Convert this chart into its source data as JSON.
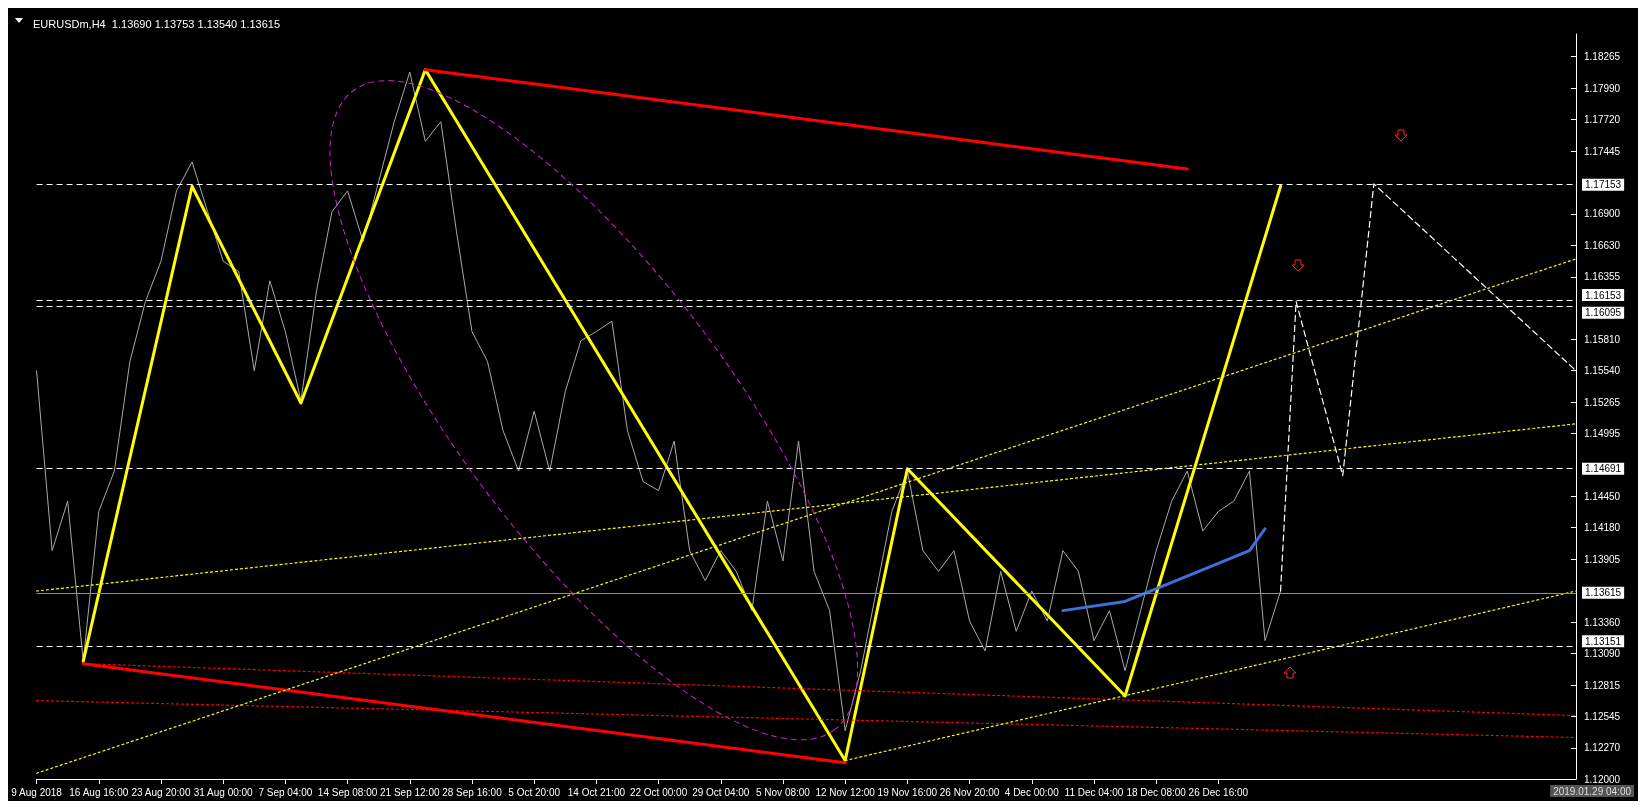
{
  "chart_data": {
    "type": "line",
    "title": "EURUSDm,H4  1.13690 1.13753 1.13540 1.13615",
    "annotations": [
      "2019.01.29 04:00"
    ],
    "categories": [
      "9 Aug 2018",
      null,
      null,
      null,
      "16 Aug 16:00",
      null,
      null,
      null,
      "23 Aug 20:00",
      null,
      null,
      null,
      "31 Aug 00:00",
      null,
      null,
      null,
      "7 Sep 04:00",
      null,
      null,
      null,
      "14 Sep 08:00",
      null,
      null,
      null,
      "21 Sep 12:00",
      null,
      null,
      null,
      "28 Sep 16:00",
      null,
      null,
      null,
      "5 Oct 20:00",
      null,
      null,
      null,
      "14 Oct 21:00",
      null,
      null,
      null,
      "22 Oct 00:00",
      null,
      null,
      null,
      "29 Oct 04:00",
      null,
      null,
      null,
      "5 Nov 08:00",
      null,
      null,
      null,
      "12 Nov 12:00",
      null,
      null,
      null,
      "19 Nov 16:00",
      null,
      null,
      null,
      "26 Nov 20:00",
      null,
      null,
      null,
      "4 Dec 00:00",
      null,
      null,
      null,
      "11 Dec 04:00",
      null,
      null,
      null,
      "18 Dec 08:00",
      null,
      null,
      null,
      "26 Dec 16:00",
      null,
      null,
      null,
      null,
      null,
      null,
      null,
      null,
      null,
      null,
      null,
      null,
      null,
      null,
      null,
      null,
      null,
      null,
      null,
      null,
      null,
      null,
      null
    ],
    "ylim": [
      1.12,
      1.1846
    ],
    "yticks": [
      {
        "value": 1.12,
        "label": "1.12000"
      },
      {
        "value": 1.1227,
        "label": "1.12270"
      },
      1.12545,
      1.12815,
      {
        "value": 1.1309,
        "label": "1.13090"
      },
      {
        "value": 1.1336,
        "label": "1.13360"
      },
      1.13905,
      {
        "value": 1.1418,
        "label": "1.14180"
      },
      {
        "value": 1.1445,
        "label": "1.14450"
      },
      1.14995,
      1.15265,
      {
        "value": 1.1554,
        "label": "1.15540"
      },
      {
        "value": 1.1581,
        "label": "1.15810"
      },
      1.16355,
      {
        "value": 1.1663,
        "label": "1.16630"
      },
      {
        "value": 1.169,
        "label": "1.16900"
      },
      1.17445,
      {
        "value": 1.1772,
        "label": "1.17720"
      },
      {
        "value": 1.1799,
        "label": "1.17990"
      },
      1.18265
    ],
    "grid": false,
    "legend": false,
    "series": [
      {
        "color": "#a8a8a8",
        "line_style": "solid",
        "values": [
          1.1554,
          1.1398,
          1.1441,
          1.1302,
          1.1432,
          1.1467,
          1.1562,
          1.1614,
          1.1649,
          1.171,
          1.1735,
          1.1692,
          1.1649,
          1.164,
          1.1554,
          1.1632,
          1.1588,
          1.1528,
          1.1623,
          1.1692,
          1.171,
          1.1666,
          1.1718,
          1.177,
          1.1813,
          1.1753,
          1.177,
          1.1675,
          1.1588,
          1.1562,
          1.1502,
          1.1467,
          1.1519,
          1.1467,
          1.1536,
          1.158,
          1.1588,
          1.1597,
          1.1502,
          1.1458,
          1.145,
          1.1493,
          1.1398,
          1.1372,
          1.1398,
          1.138,
          1.1346,
          1.1441,
          1.1389,
          1.1493,
          1.138,
          1.1346,
          1.1242,
          1.1294,
          1.1363,
          1.1432,
          1.1467,
          1.1398,
          1.138,
          1.1398,
          1.1337,
          1.1311,
          1.138,
          1.1328,
          1.1363,
          1.1337,
          1.1398,
          1.138,
          1.132,
          1.1346,
          1.1294,
          1.1346,
          1.1398,
          1.1441,
          1.1467,
          1.1415,
          1.1432,
          1.1441,
          1.1467,
          1.132,
          1.1363,
          null,
          null,
          null,
          null,
          null,
          null,
          null,
          null,
          null,
          null,
          null,
          null,
          null,
          null,
          null,
          null,
          null,
          null,
          null
        ]
      },
      {
        "color": "#ffff00",
        "line_style": "solid",
        "values": [
          null,
          null,
          null,
          1.1302,
          null,
          null,
          null,
          null,
          null,
          null,
          1.1714,
          null,
          null,
          null,
          null,
          null,
          null,
          1.1526,
          null,
          null,
          null,
          null,
          null,
          null,
          null,
          1.1815,
          null,
          null,
          null,
          null,
          null,
          null,
          null,
          null,
          null,
          null,
          null,
          null,
          null,
          null,
          null,
          null,
          null,
          null,
          null,
          null,
          null,
          null,
          null,
          null,
          null,
          null,
          1.1216,
          null,
          null,
          null,
          1.1469,
          null,
          null,
          null,
          null,
          null,
          null,
          null,
          null,
          null,
          null,
          null,
          null,
          null,
          1.1272,
          null,
          null,
          null,
          null,
          null,
          null,
          null,
          null,
          null,
          1.1714,
          null,
          null,
          null,
          null,
          null,
          null,
          null,
          null,
          null,
          null,
          null,
          null,
          null,
          null,
          null,
          null,
          null,
          null,
          null
        ]
      },
      {
        "color": "#ff0000",
        "line_style": "solid",
        "values": [
          null,
          null,
          null,
          null,
          null,
          null,
          null,
          null,
          null,
          null,
          null,
          null,
          null,
          null,
          null,
          null,
          null,
          null,
          null,
          null,
          null,
          null,
          null,
          null,
          null,
          1.1815,
          null,
          null,
          null,
          null,
          null,
          null,
          null,
          null,
          null,
          null,
          null,
          null,
          null,
          null,
          null,
          null,
          null,
          null,
          null,
          null,
          null,
          null,
          null,
          null,
          null,
          null,
          null,
          null,
          null,
          null,
          null,
          null,
          null,
          null,
          null,
          null,
          null,
          null,
          null,
          null,
          null,
          null,
          null,
          null,
          null,
          null,
          null,
          null,
          1.1729,
          null,
          null,
          null,
          null,
          null,
          null,
          null,
          null,
          null,
          null,
          null,
          null,
          null,
          null,
          null,
          null,
          null,
          null,
          null,
          null,
          null,
          null,
          null,
          null,
          null
        ]
      },
      {
        "color": "#ff0000",
        "line_style": "solid",
        "values": [
          null,
          null,
          null,
          1.13,
          null,
          null,
          null,
          null,
          null,
          null,
          null,
          null,
          null,
          null,
          null,
          null,
          null,
          null,
          null,
          null,
          null,
          null,
          null,
          null,
          null,
          null,
          null,
          null,
          null,
          null,
          null,
          null,
          null,
          null,
          null,
          null,
          null,
          null,
          null,
          null,
          null,
          null,
          null,
          null,
          null,
          null,
          null,
          null,
          null,
          null,
          null,
          null,
          1.1214,
          null,
          null,
          null,
          null,
          null,
          null,
          null,
          null,
          null,
          null,
          null,
          null,
          null,
          null,
          null,
          null,
          null,
          null,
          null,
          null,
          null,
          null,
          null,
          null,
          null,
          null,
          null,
          null,
          null,
          null,
          null,
          null,
          null,
          null,
          null,
          null,
          null,
          null,
          null,
          null,
          null,
          null,
          null,
          null,
          null,
          null,
          null
        ]
      },
      {
        "color": "#ff0000",
        "line_style": "dotted",
        "values": [
          null,
          null,
          null,
          1.13,
          null,
          null,
          null,
          null,
          null,
          null,
          null,
          null,
          null,
          null,
          null,
          null,
          null,
          null,
          null,
          null,
          null,
          null,
          null,
          null,
          null,
          null,
          null,
          null,
          null,
          null,
          null,
          null,
          null,
          null,
          null,
          null,
          null,
          null,
          null,
          null,
          null,
          null,
          null,
          null,
          null,
          null,
          null,
          null,
          null,
          null,
          null,
          null,
          null,
          null,
          null,
          null,
          null,
          null,
          null,
          null,
          null,
          null,
          null,
          null,
          null,
          null,
          null,
          null,
          null,
          null,
          null,
          null,
          null,
          null,
          null,
          null,
          null,
          null,
          null,
          null,
          null,
          null,
          null,
          null,
          null,
          null,
          null,
          null,
          null,
          null,
          null,
          null,
          null,
          null,
          null,
          null,
          null,
          null,
          null,
          1.1255
        ]
      },
      {
        "color": "#ff0000",
        "line_style": "dotted",
        "values": [
          1.1268,
          null,
          null,
          null,
          null,
          null,
          null,
          null,
          null,
          null,
          null,
          null,
          null,
          null,
          null,
          null,
          null,
          null,
          null,
          null,
          null,
          null,
          null,
          null,
          null,
          null,
          null,
          null,
          null,
          null,
          null,
          null,
          null,
          null,
          null,
          null,
          null,
          null,
          null,
          null,
          null,
          null,
          null,
          null,
          null,
          null,
          null,
          null,
          null,
          null,
          null,
          null,
          null,
          null,
          null,
          null,
          null,
          null,
          null,
          null,
          null,
          null,
          null,
          null,
          null,
          null,
          null,
          null,
          null,
          null,
          null,
          null,
          null,
          null,
          null,
          null,
          null,
          null,
          null,
          null,
          null,
          null,
          null,
          null,
          null,
          null,
          null,
          null,
          null,
          null,
          null,
          null,
          null,
          null,
          null,
          null,
          null,
          null,
          null,
          1.1236
        ]
      },
      {
        "color": "#ffff00",
        "line_style": "dotted",
        "values": [
          1.1363,
          null,
          null,
          null,
          null,
          null,
          null,
          null,
          null,
          null,
          null,
          null,
          null,
          null,
          null,
          null,
          null,
          null,
          null,
          null,
          null,
          null,
          null,
          null,
          null,
          null,
          null,
          null,
          null,
          null,
          null,
          null,
          null,
          null,
          null,
          null,
          null,
          null,
          null,
          null,
          null,
          null,
          null,
          null,
          null,
          null,
          null,
          null,
          null,
          null,
          null,
          null,
          null,
          null,
          null,
          null,
          null,
          null,
          null,
          null,
          null,
          null,
          null,
          null,
          null,
          null,
          null,
          null,
          null,
          null,
          null,
          null,
          null,
          null,
          null,
          null,
          null,
          null,
          null,
          null,
          null,
          null,
          null,
          null,
          null,
          null,
          null,
          null,
          null,
          null,
          null,
          null,
          null,
          null,
          null,
          null,
          null,
          null,
          null,
          1.1508
        ]
      },
      {
        "color": "#ffff00",
        "line_style": "dotted",
        "values": [
          1.1205,
          null,
          null,
          null,
          null,
          null,
          null,
          null,
          null,
          null,
          null,
          null,
          null,
          null,
          null,
          null,
          null,
          null,
          null,
          null,
          null,
          null,
          null,
          null,
          null,
          null,
          null,
          null,
          null,
          null,
          null,
          null,
          null,
          null,
          null,
          null,
          null,
          null,
          null,
          null,
          null,
          null,
          null,
          null,
          null,
          null,
          null,
          null,
          null,
          null,
          null,
          null,
          null,
          null,
          null,
          null,
          null,
          null,
          null,
          null,
          null,
          null,
          null,
          null,
          null,
          null,
          null,
          null,
          null,
          null,
          null,
          null,
          null,
          null,
          null,
          null,
          null,
          null,
          null,
          null,
          null,
          null,
          null,
          null,
          null,
          null,
          null,
          null,
          null,
          null,
          null,
          null,
          null,
          null,
          null,
          null,
          null,
          null,
          null,
          1.1651
        ]
      },
      {
        "color": "#ffff00",
        "line_style": "dotted",
        "values": [
          null,
          null,
          null,
          null,
          null,
          null,
          null,
          null,
          null,
          null,
          null,
          null,
          null,
          null,
          null,
          null,
          null,
          null,
          null,
          null,
          null,
          null,
          null,
          null,
          null,
          null,
          null,
          null,
          null,
          null,
          null,
          null,
          null,
          null,
          null,
          null,
          null,
          null,
          null,
          null,
          null,
          null,
          null,
          null,
          null,
          null,
          null,
          null,
          null,
          null,
          null,
          null,
          1.1216,
          null,
          null,
          null,
          null,
          null,
          null,
          null,
          null,
          null,
          null,
          null,
          null,
          null,
          null,
          null,
          null,
          null,
          null,
          null,
          null,
          null,
          null,
          null,
          null,
          null,
          null,
          null,
          null,
          null,
          null,
          null,
          null,
          null,
          null,
          null,
          null,
          null,
          null,
          null,
          null,
          null,
          null,
          null,
          null,
          null,
          null,
          1.1363
        ]
      },
      {
        "color": "#ffffff",
        "line_style": "dashed",
        "values": [
          null,
          null,
          null,
          null,
          null,
          null,
          null,
          null,
          null,
          null,
          null,
          null,
          null,
          null,
          null,
          null,
          null,
          null,
          null,
          null,
          null,
          null,
          null,
          null,
          null,
          null,
          null,
          null,
          null,
          null,
          null,
          null,
          null,
          null,
          null,
          null,
          null,
          null,
          null,
          null,
          null,
          null,
          null,
          null,
          null,
          null,
          null,
          null,
          null,
          null,
          null,
          null,
          null,
          null,
          null,
          null,
          null,
          null,
          null,
          null,
          null,
          null,
          null,
          null,
          null,
          null,
          null,
          null,
          null,
          null,
          null,
          null,
          null,
          null,
          null,
          null,
          null,
          null,
          null,
          null,
          1.1363,
          1.1614,
          null,
          null,
          1.1463,
          null,
          1.1716,
          null,
          null,
          null,
          null,
          null,
          null,
          null,
          null,
          null,
          null,
          null,
          null,
          1.1554
        ]
      },
      {
        "color": "#3f6fd8",
        "line_style": "solid",
        "values": [
          null,
          null,
          null,
          null,
          null,
          null,
          null,
          null,
          null,
          null,
          null,
          null,
          null,
          null,
          null,
          null,
          null,
          null,
          null,
          null,
          null,
          null,
          null,
          null,
          null,
          null,
          null,
          null,
          null,
          null,
          null,
          null,
          null,
          null,
          null,
          null,
          null,
          null,
          null,
          null,
          null,
          null,
          null,
          null,
          null,
          null,
          null,
          null,
          null,
          null,
          null,
          null,
          null,
          null,
          null,
          null,
          null,
          null,
          null,
          null,
          null,
          null,
          null,
          null,
          null,
          null,
          1.1346,
          null,
          null,
          null,
          1.1354,
          null,
          null,
          null,
          1.1376,
          null,
          null,
          null,
          1.1398,
          1.1417,
          null,
          null,
          null,
          null,
          null,
          null,
          null,
          null,
          null,
          null,
          null,
          null,
          null,
          null,
          null,
          null,
          null,
          null,
          null,
          null
        ]
      }
    ],
    "ref_lines": [
      {
        "axis": "y",
        "value": 1.17153,
        "label": "1.17153",
        "color": "#ffffff",
        "line_style": "dashed"
      },
      {
        "axis": "y",
        "value": 1.16153,
        "label": "1.16153",
        "color": "#ffffff",
        "line_style": "dashed"
      },
      {
        "axis": "y",
        "value": 1.16095,
        "label": "1.16095",
        "color": "#ffffff",
        "line_style": "dashed"
      },
      {
        "axis": "y",
        "value": 1.14691,
        "label": "1.14691",
        "color": "#ffffff",
        "line_style": "dashed"
      },
      {
        "axis": "y",
        "value": 1.13615,
        "label": "1.13615",
        "color": "#8a8f99",
        "line_style": "solid"
      },
      {
        "axis": "y",
        "value": 1.13151,
        "label": "1.13151",
        "color": "#ffffff",
        "line_style": "dashed"
      }
    ]
  }
}
